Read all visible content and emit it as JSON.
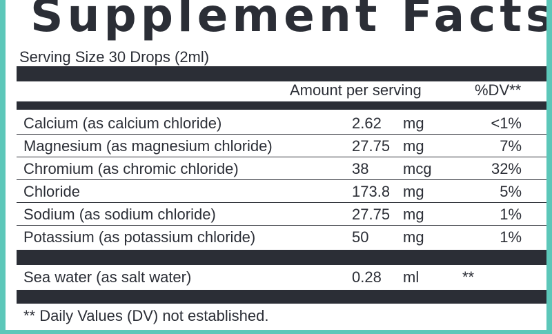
{
  "title": "Supplement Facts",
  "serving_size": "Serving Size 30 Drops (2ml)",
  "header": {
    "amount": "Amount per serving",
    "dv": "%DV**"
  },
  "nutrients": [
    {
      "name": "Calcium (as calcium chloride)",
      "amount": "2.62",
      "unit": "mg",
      "dv": "<1%"
    },
    {
      "name": "Magnesium (as magnesium chloride)",
      "amount": "27.75",
      "unit": "mg",
      "dv": "7%"
    },
    {
      "name": "Chromium (as chromic chloride)",
      "amount": "38",
      "unit": "mcg",
      "dv": "32%"
    },
    {
      "name": "Chloride",
      "amount": "173.8",
      "unit": "mg",
      "dv": "5%"
    },
    {
      "name": "Sodium (as sodium chloride)",
      "amount": "27.75",
      "unit": "mg",
      "dv": "1%"
    },
    {
      "name": "Potassium (as potassium chloride)",
      "amount": "50",
      "unit": "mg",
      "dv": "1%"
    }
  ],
  "other": {
    "name": "Sea water (as salt water)",
    "amount": "0.28",
    "unit": "ml",
    "dv": "**"
  },
  "footnote": "** Daily Values (DV) not established.",
  "colors": {
    "border": "#5cc7b9",
    "ink": "#2b2e36",
    "background": "#ffffff"
  }
}
